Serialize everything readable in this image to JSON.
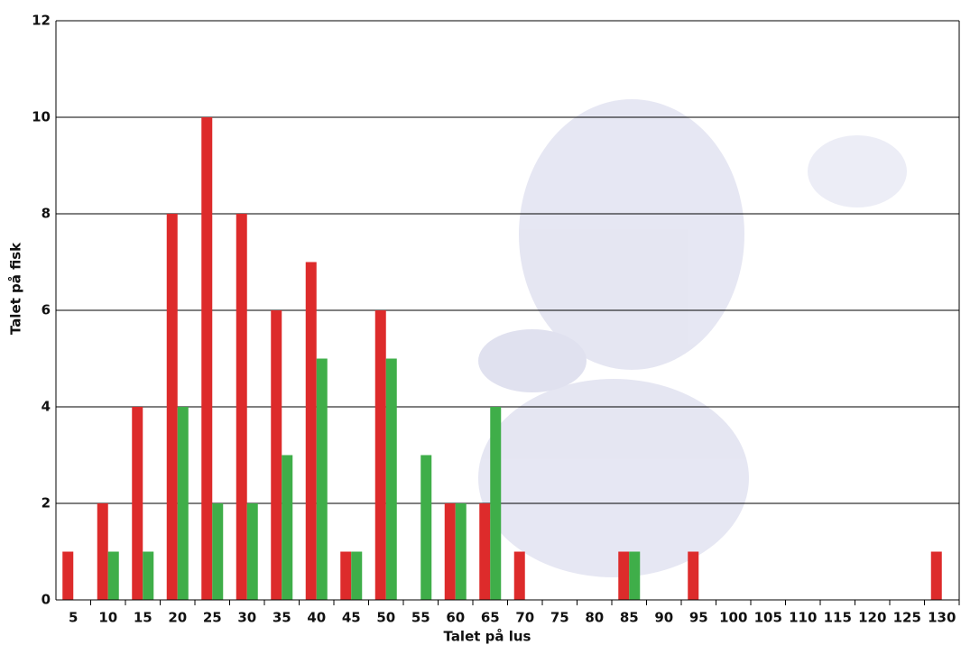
{
  "chart_data": {
    "type": "bar",
    "x_label": "Talet på lus",
    "y_label": "Talet på fisk",
    "categories": [
      "5",
      "10",
      "15",
      "20",
      "25",
      "30",
      "35",
      "40",
      "45",
      "50",
      "55",
      "60",
      "65",
      "70",
      "75",
      "80",
      "85",
      "90",
      "95",
      "100",
      "105",
      "110",
      "115",
      "120",
      "125",
      "130"
    ],
    "series": [
      {
        "color": "#dd2b2b",
        "values": [
          1,
          2,
          4,
          8,
          10,
          8,
          6,
          7,
          1,
          6,
          0,
          2,
          2,
          1,
          0,
          0,
          1,
          0,
          1,
          0,
          0,
          0,
          0,
          0,
          0,
          1
        ]
      },
      {
        "color": "#3fae49",
        "values": [
          0,
          1,
          1,
          4,
          2,
          2,
          3,
          5,
          1,
          5,
          3,
          2,
          4,
          0,
          0,
          0,
          1,
          0,
          0,
          0,
          0,
          0,
          0,
          0,
          0,
          0
        ]
      }
    ],
    "ylim": [
      0,
      12
    ],
    "yticks": [
      0,
      2,
      4,
      6,
      8,
      10,
      12
    ],
    "grid": true
  }
}
